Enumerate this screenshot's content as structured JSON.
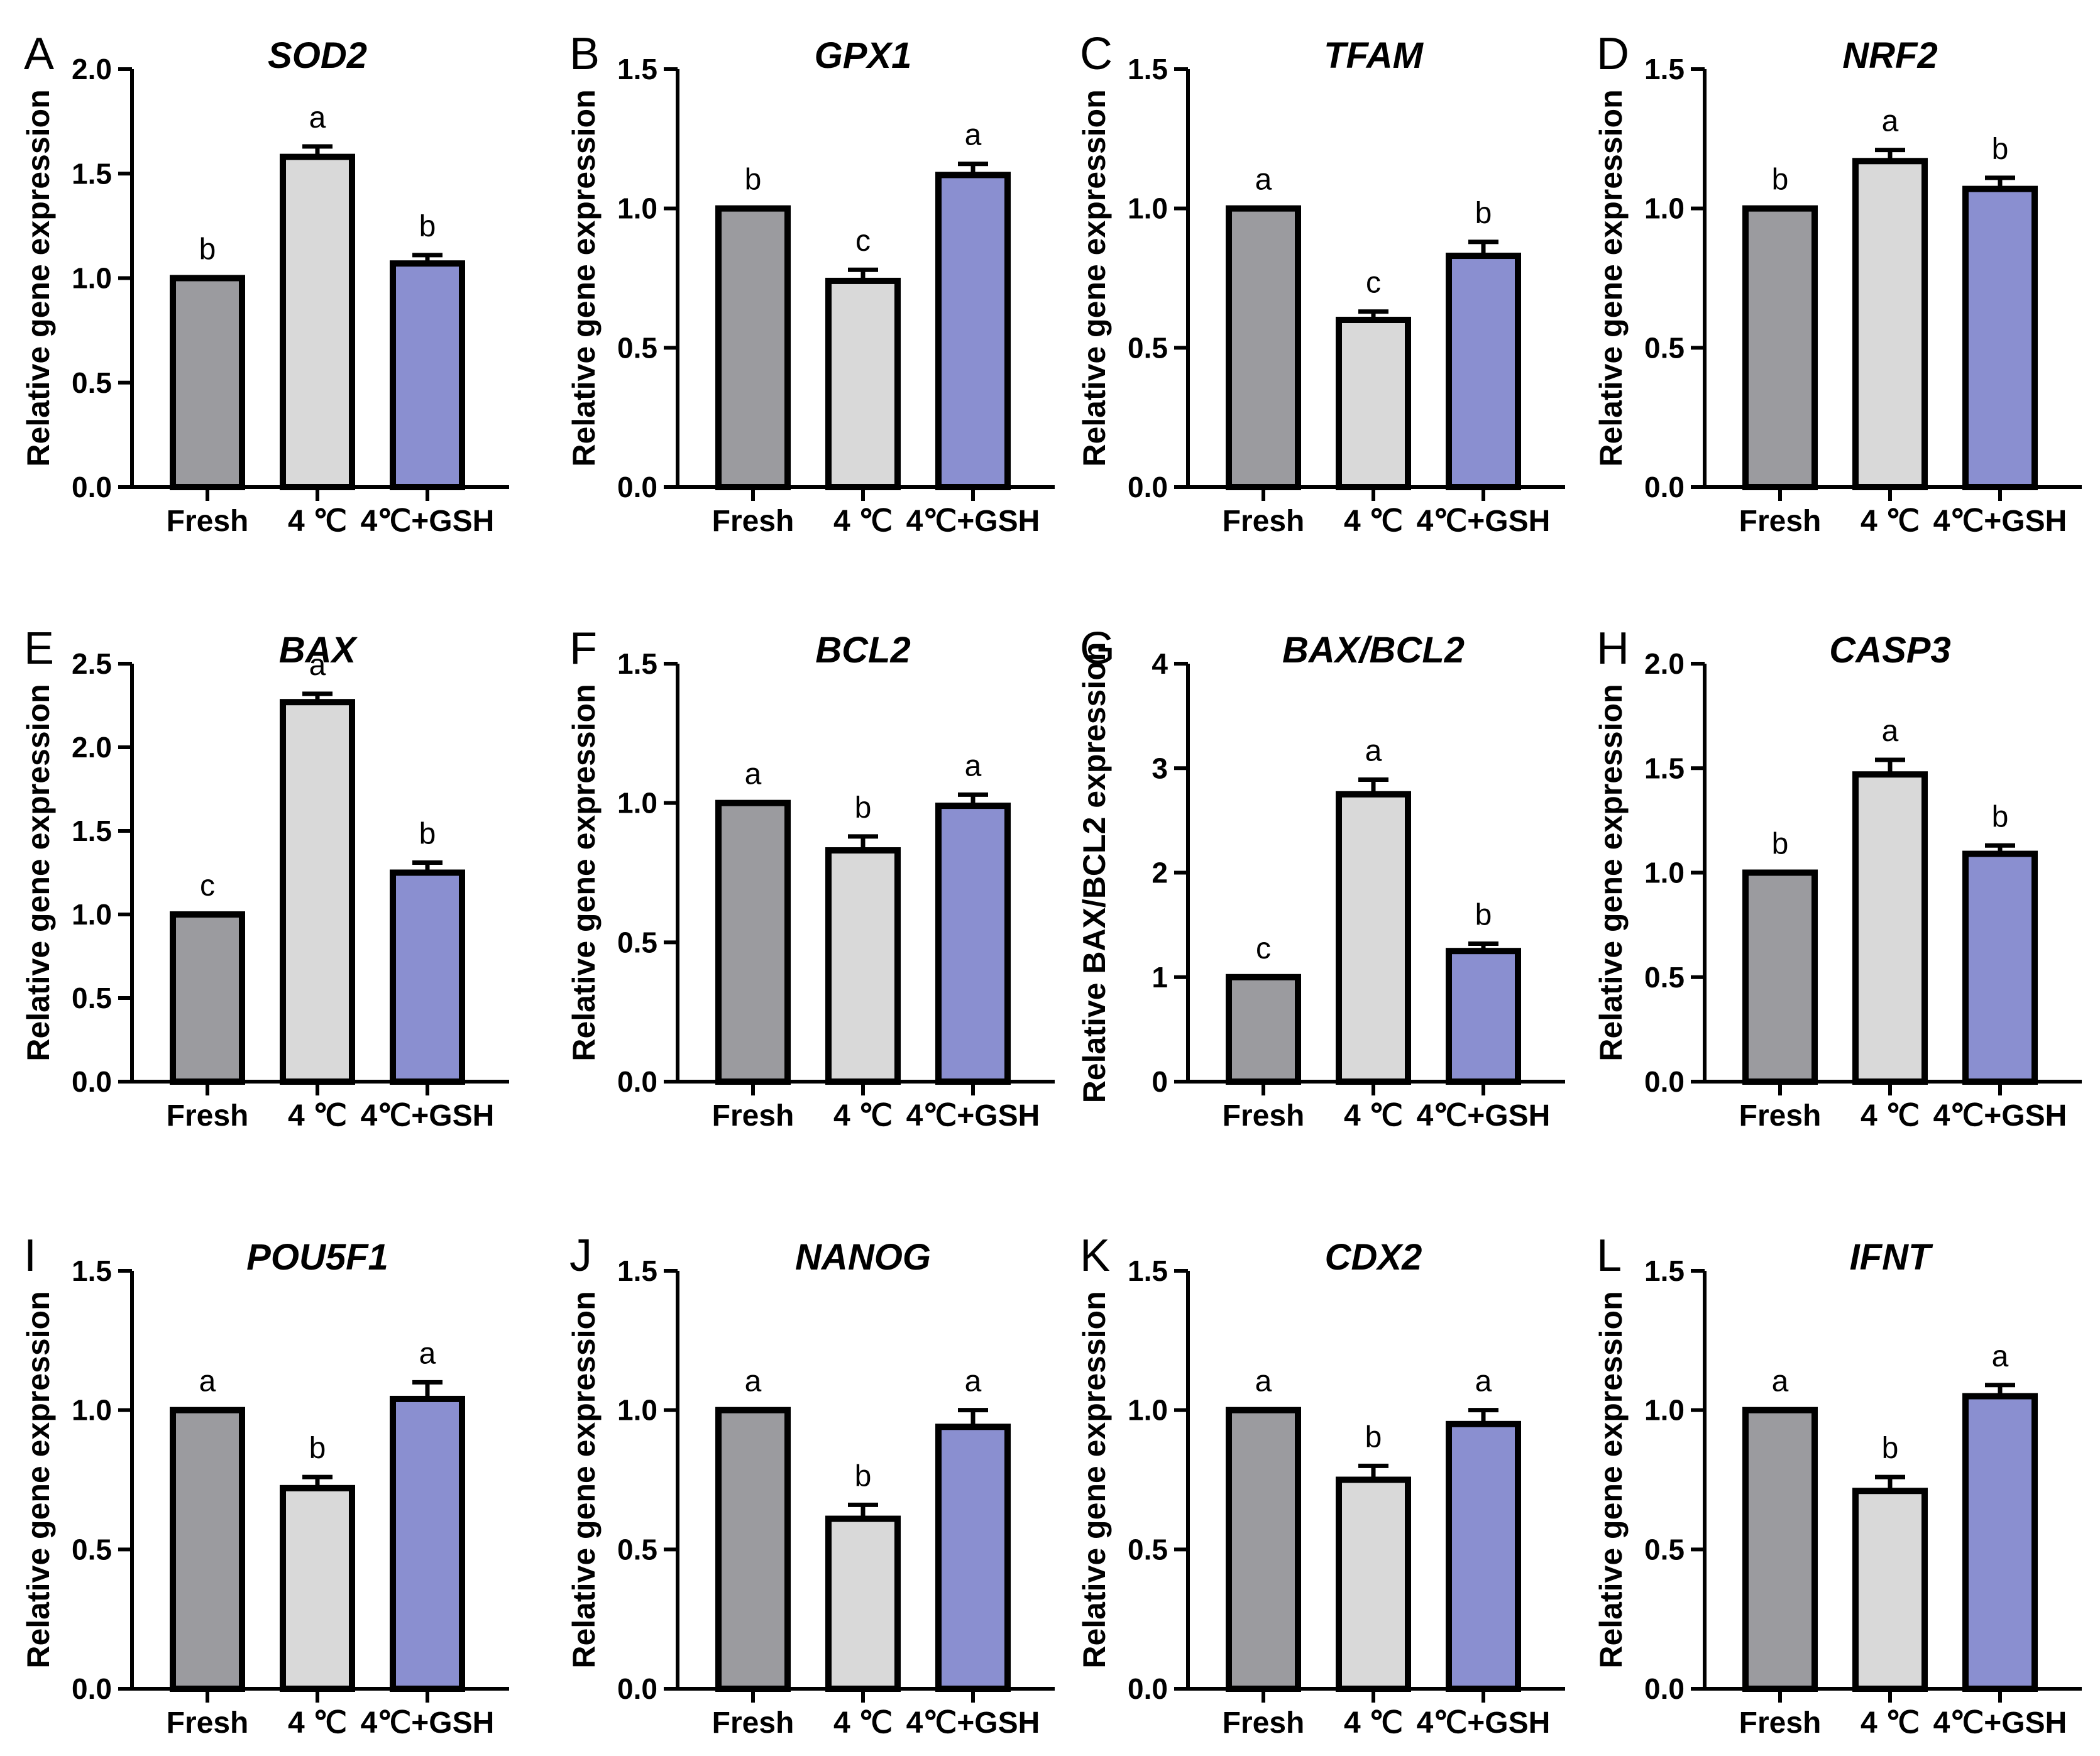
{
  "figure": {
    "categories": [
      "Fresh",
      "4 ℃",
      "4℃+GSH"
    ],
    "colors": {
      "Fresh": "#9b9b9f",
      "4C": "#d9d9d9",
      "4C_GSH": "#8a8fd0"
    }
  },
  "chart_data": [
    {
      "panel": "A",
      "type": "bar",
      "title": "SOD2",
      "ylabel": "Relative gene expression",
      "ylim": [
        0,
        2.0
      ],
      "yticks": [
        "0.0",
        "0.5",
        "1.0",
        "1.5",
        "2.0"
      ],
      "tickValues": [
        0,
        0.5,
        1.0,
        1.5,
        2.0
      ],
      "values": [
        1.0,
        1.58,
        1.07
      ],
      "errors": [
        0,
        0.05,
        0.04
      ],
      "significance": [
        "b",
        "a",
        "b"
      ]
    },
    {
      "panel": "B",
      "type": "bar",
      "title": "GPX1",
      "ylabel": "Relative gene expression",
      "ylim": [
        0,
        1.5
      ],
      "yticks": [
        "0.0",
        "0.5",
        "1.0",
        "1.5"
      ],
      "tickValues": [
        0,
        0.5,
        1.0,
        1.5
      ],
      "values": [
        1.0,
        0.74,
        1.12
      ],
      "errors": [
        0,
        0.04,
        0.04
      ],
      "significance": [
        "b",
        "c",
        "a"
      ]
    },
    {
      "panel": "C",
      "type": "bar",
      "title": "TFAM",
      "ylabel": "Relative gene expression",
      "ylim": [
        0,
        1.5
      ],
      "yticks": [
        "0.0",
        "0.5",
        "1.0",
        "1.5"
      ],
      "tickValues": [
        0,
        0.5,
        1.0,
        1.5
      ],
      "values": [
        1.0,
        0.6,
        0.83
      ],
      "errors": [
        0,
        0.03,
        0.05
      ],
      "significance": [
        "a",
        "c",
        "b"
      ]
    },
    {
      "panel": "D",
      "type": "bar",
      "title": "NRF2",
      "ylabel": "Relative gene expression",
      "ylim": [
        0,
        1.5
      ],
      "yticks": [
        "0.0",
        "0.5",
        "1.0",
        "1.5"
      ],
      "tickValues": [
        0,
        0.5,
        1.0,
        1.5
      ],
      "values": [
        1.0,
        1.17,
        1.07
      ],
      "errors": [
        0,
        0.04,
        0.04
      ],
      "significance": [
        "b",
        "a",
        "b"
      ]
    },
    {
      "panel": "E",
      "type": "bar",
      "title": "BAX",
      "ylabel": "Relative gene expression",
      "ylim": [
        0,
        2.5
      ],
      "yticks": [
        "0.0",
        "0.5",
        "1.0",
        "1.5",
        "2.0",
        "2.5"
      ],
      "tickValues": [
        0,
        0.5,
        1.0,
        1.5,
        2.0,
        2.5
      ],
      "values": [
        1.0,
        2.27,
        1.25
      ],
      "errors": [
        0,
        0.05,
        0.06
      ],
      "significance": [
        "c",
        "a",
        "b"
      ]
    },
    {
      "panel": "F",
      "type": "bar",
      "title": "BCL2",
      "ylabel": "Relative gene expression",
      "ylim": [
        0,
        1.5
      ],
      "yticks": [
        "0.0",
        "0.5",
        "1.0",
        "1.5"
      ],
      "tickValues": [
        0,
        0.5,
        1.0,
        1.5
      ],
      "values": [
        1.0,
        0.83,
        0.99
      ],
      "errors": [
        0,
        0.05,
        0.04
      ],
      "significance": [
        "a",
        "b",
        "a"
      ]
    },
    {
      "panel": "G",
      "type": "bar",
      "title": "BAX/BCL2",
      "ylabel": "Relative BAX/BCL2 expression",
      "ylim": [
        0,
        4
      ],
      "yticks": [
        "0",
        "1",
        "2",
        "3",
        "4"
      ],
      "tickValues": [
        0,
        1,
        2,
        3,
        4
      ],
      "values": [
        1.0,
        2.75,
        1.25
      ],
      "errors": [
        0,
        0.14,
        0.07
      ],
      "significance": [
        "c",
        "a",
        "b"
      ]
    },
    {
      "panel": "H",
      "type": "bar",
      "title": "CASP3",
      "ylabel": "Relative gene expression",
      "ylim": [
        0,
        2.0
      ],
      "yticks": [
        "0.0",
        "0.5",
        "1.0",
        "1.5",
        "2.0"
      ],
      "tickValues": [
        0,
        0.5,
        1.0,
        1.5,
        2.0
      ],
      "values": [
        1.0,
        1.47,
        1.09
      ],
      "errors": [
        0,
        0.07,
        0.04
      ],
      "significance": [
        "b",
        "a",
        "b"
      ]
    },
    {
      "panel": "I",
      "type": "bar",
      "title": "POU5F1",
      "ylabel": "Relative gene expression",
      "ylim": [
        0,
        1.5
      ],
      "yticks": [
        "0.0",
        "0.5",
        "1.0",
        "1.5"
      ],
      "tickValues": [
        0,
        0.5,
        1.0,
        1.5
      ],
      "values": [
        1.0,
        0.72,
        1.04
      ],
      "errors": [
        0,
        0.04,
        0.06
      ],
      "significance": [
        "a",
        "b",
        "a"
      ]
    },
    {
      "panel": "J",
      "type": "bar",
      "title": "NANOG",
      "ylabel": "Relative gene expression",
      "ylim": [
        0,
        1.5
      ],
      "yticks": [
        "0.0",
        "0.5",
        "1.0",
        "1.5"
      ],
      "tickValues": [
        0,
        0.5,
        1.0,
        1.5
      ],
      "values": [
        1.0,
        0.61,
        0.94
      ],
      "errors": [
        0,
        0.05,
        0.06
      ],
      "significance": [
        "a",
        "b",
        "a"
      ]
    },
    {
      "panel": "K",
      "type": "bar",
      "title": "CDX2",
      "ylabel": "Relative gene expression",
      "ylim": [
        0,
        1.5
      ],
      "yticks": [
        "0.0",
        "0.5",
        "1.0",
        "1.5"
      ],
      "tickValues": [
        0,
        0.5,
        1.0,
        1.5
      ],
      "values": [
        1.0,
        0.75,
        0.95
      ],
      "errors": [
        0,
        0.05,
        0.05
      ],
      "significance": [
        "a",
        "b",
        "a"
      ]
    },
    {
      "panel": "L",
      "type": "bar",
      "title": "IFNT",
      "ylabel": "Relative gene expression",
      "ylim": [
        0,
        1.5
      ],
      "yticks": [
        "0.0",
        "0.5",
        "1.0",
        "1.5"
      ],
      "tickValues": [
        0,
        0.5,
        1.0,
        1.5
      ],
      "values": [
        1.0,
        0.71,
        1.05
      ],
      "errors": [
        0,
        0.05,
        0.04
      ],
      "significance": [
        "a",
        "b",
        "a"
      ]
    }
  ]
}
